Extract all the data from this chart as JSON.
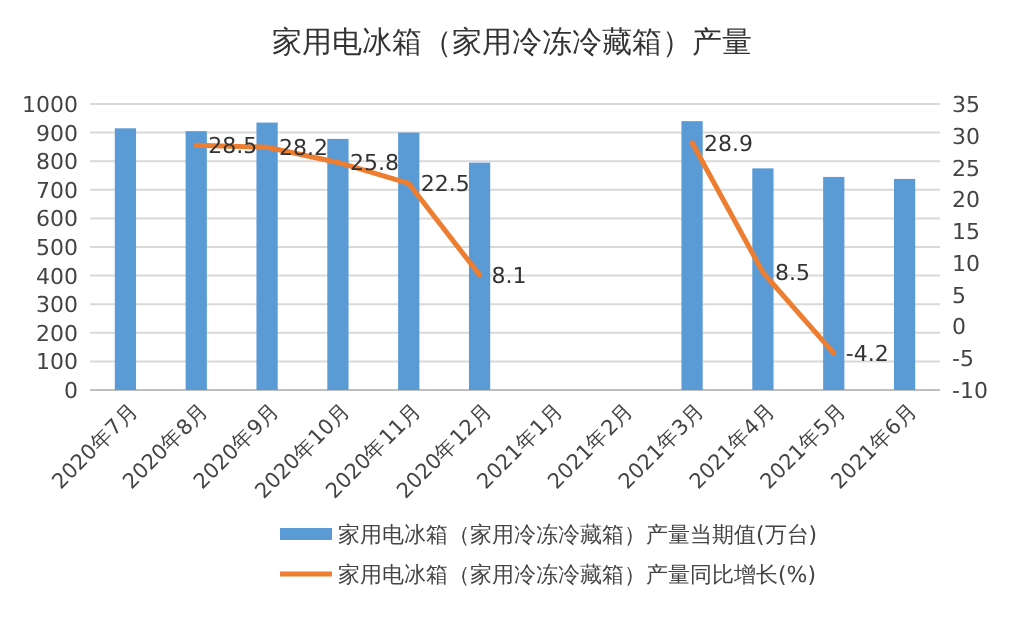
{
  "chart_data": {
    "type": "bar",
    "title": "家用电冰箱（家用冷冻冷藏箱）产量",
    "categories": [
      "2020年7月",
      "2020年8月",
      "2020年9月",
      "2020年10月",
      "2020年11月",
      "2020年12月",
      "2021年1月",
      "2021年2月",
      "2021年3月",
      "2021年4月",
      "2021年5月",
      "2021年6月"
    ],
    "series": [
      {
        "name": "家用电冰箱（家用冷冻冷藏箱）产量当期值(万台)",
        "color": "#5b9bd5",
        "values": [
          915,
          905,
          935,
          878,
          900,
          795,
          null,
          null,
          940,
          775,
          745,
          738
        ]
      },
      {
        "name": "家用电冰箱（家用冷冻冷藏箱）产量同比增长(%)",
        "type": "line",
        "axis": "y2",
        "color": "#ed7d31",
        "values": [
          null,
          28.5,
          28.2,
          25.8,
          22.5,
          8.1,
          null,
          null,
          28.9,
          8.5,
          -4.2,
          null
        ],
        "value_labels": [
          null,
          "28.5",
          "28.2",
          "25.8",
          "22.5",
          "8.1",
          null,
          null,
          "28.9",
          "8.5",
          "-4.2",
          null
        ]
      }
    ],
    "ylim": [
      0,
      1000
    ],
    "yticks": [
      0,
      100,
      200,
      300,
      400,
      500,
      600,
      700,
      800,
      900,
      1000
    ],
    "y2lim": [
      -10,
      35
    ],
    "y2ticks": [
      -10,
      -5,
      0,
      5,
      10,
      15,
      20,
      25,
      30,
      35
    ],
    "grid": "y",
    "legend": "bottom",
    "marker": "none",
    "line_style": "solid"
  }
}
